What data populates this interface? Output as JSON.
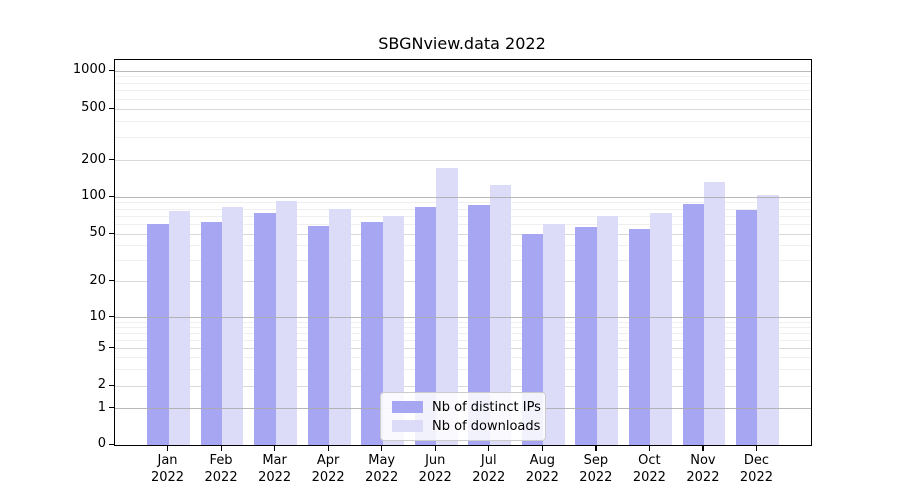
{
  "title": "SBGNview.data 2022",
  "chart_data": {
    "type": "bar",
    "title": "SBGNview.data 2022",
    "categories": [
      "Jan",
      "Feb",
      "Mar",
      "Apr",
      "May",
      "Jun",
      "Jul",
      "Aug",
      "Sep",
      "Oct",
      "Nov",
      "Dec"
    ],
    "category_year": "2022",
    "series": [
      {
        "name": "Nb of distinct IPs",
        "color": "#a6a6f2",
        "values": [
          61,
          63,
          75,
          58,
          63,
          84,
          87,
          50,
          57,
          55,
          88,
          79
        ]
      },
      {
        "name": "Nb of downloads",
        "color": "#dcdcf8",
        "values": [
          78,
          84,
          93,
          81,
          71,
          173,
          126,
          61,
          70,
          75,
          134,
          104
        ]
      }
    ],
    "yscale": "symlog",
    "y_ticks": [
      0,
      1,
      2,
      5,
      10,
      20,
      50,
      100,
      200,
      500,
      1000
    ],
    "y_minor_gridlines": [
      3,
      4,
      6,
      7,
      8,
      9,
      30,
      40,
      60,
      70,
      80,
      90,
      300,
      400,
      600,
      700,
      800,
      900
    ],
    "ylim": [
      0,
      1400
    ],
    "grid": true,
    "legend_position": "lower center"
  }
}
